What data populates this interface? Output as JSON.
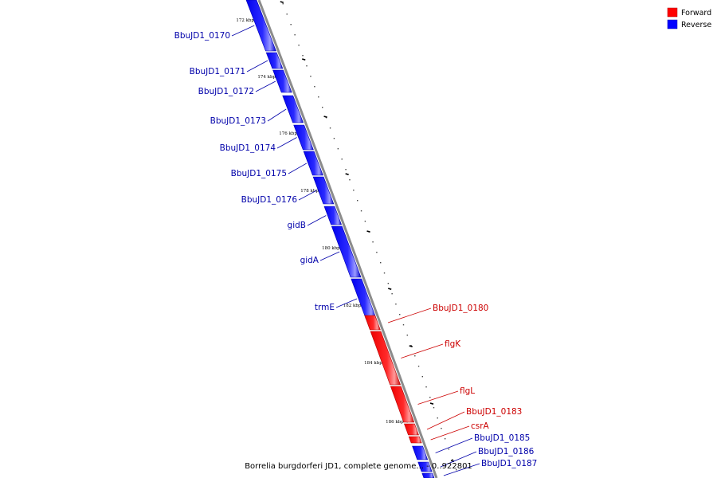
{
  "legend": [
    {
      "label": "Forward",
      "color": "#ff0000"
    },
    {
      "label": "Reverse",
      "color": "#0000ff"
    }
  ],
  "caption": "Borrelia burgdorferi JD1, complete genome... - 0..922801",
  "ticks": [
    "172 kbp",
    "174 kbp",
    "176 kbp",
    "178 kbp",
    "180 kbp",
    "182 kbp",
    "184 kbp",
    "186 kbp"
  ],
  "genes": [
    {
      "label": "BbuJD1_0170",
      "strand": "reverse"
    },
    {
      "label": "BbuJD1_0171",
      "strand": "reverse"
    },
    {
      "label": "BbuJD1_0172",
      "strand": "reverse"
    },
    {
      "label": "BbuJD1_0173",
      "strand": "reverse"
    },
    {
      "label": "BbuJD1_0174",
      "strand": "reverse"
    },
    {
      "label": "BbuJD1_0175",
      "strand": "reverse"
    },
    {
      "label": "BbuJD1_0176",
      "strand": "reverse"
    },
    {
      "label": "gidB",
      "strand": "reverse"
    },
    {
      "label": "gidA",
      "strand": "reverse"
    },
    {
      "label": "trmE",
      "strand": "reverse"
    },
    {
      "label": "BbuJD1_0180",
      "strand": "forward"
    },
    {
      "label": "flgK",
      "strand": "forward"
    },
    {
      "label": "flgL",
      "strand": "forward"
    },
    {
      "label": "BbuJD1_0183",
      "strand": "forward"
    },
    {
      "label": "csrA",
      "strand": "forward"
    },
    {
      "label": "BbuJD1_0185",
      "strand": "reverse"
    },
    {
      "label": "BbuJD1_0186",
      "strand": "reverse"
    },
    {
      "label": "BbuJD1_0187",
      "strand": "reverse"
    }
  ]
}
